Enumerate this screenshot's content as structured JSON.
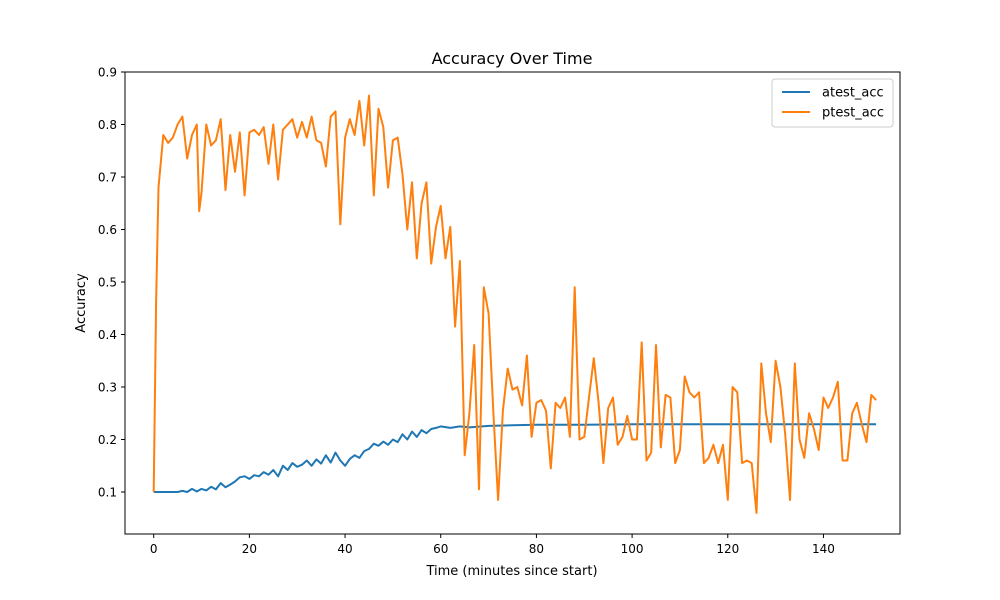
{
  "chart_data": {
    "type": "line",
    "title": "Accuracy Over Time",
    "xlabel": "Time (minutes since start)",
    "ylabel": "Accuracy",
    "xlim": [
      -6,
      156
    ],
    "ylim": [
      0.02,
      0.9
    ],
    "xticks": [
      0,
      20,
      40,
      60,
      80,
      100,
      120,
      140
    ],
    "yticks": [
      0.1,
      0.2,
      0.3,
      0.4,
      0.5,
      0.6,
      0.7,
      0.8,
      0.9
    ],
    "xtick_labels": [
      "0",
      "20",
      "40",
      "60",
      "80",
      "100",
      "120",
      "140"
    ],
    "ytick_labels": [
      "0.1",
      "0.2",
      "0.3",
      "0.4",
      "0.5",
      "0.6",
      "0.7",
      "0.8",
      "0.9"
    ],
    "grid": false,
    "legend_position": "top-right",
    "series": [
      {
        "name": "atest_acc",
        "color": "#1f77b4",
        "points": [
          [
            0,
            0.1
          ],
          [
            2,
            0.1
          ],
          [
            4,
            0.1
          ],
          [
            5,
            0.1
          ],
          [
            6,
            0.102
          ],
          [
            7,
            0.1
          ],
          [
            8,
            0.106
          ],
          [
            9,
            0.101
          ],
          [
            10,
            0.106
          ],
          [
            11,
            0.103
          ],
          [
            12,
            0.11
          ],
          [
            13,
            0.105
          ],
          [
            14,
            0.117
          ],
          [
            15,
            0.109
          ],
          [
            16,
            0.114
          ],
          [
            17,
            0.12
          ],
          [
            18,
            0.128
          ],
          [
            19,
            0.13
          ],
          [
            20,
            0.125
          ],
          [
            21,
            0.132
          ],
          [
            22,
            0.13
          ],
          [
            23,
            0.138
          ],
          [
            24,
            0.133
          ],
          [
            25,
            0.142
          ],
          [
            26,
            0.13
          ],
          [
            27,
            0.15
          ],
          [
            28,
            0.142
          ],
          [
            29,
            0.155
          ],
          [
            30,
            0.148
          ],
          [
            31,
            0.152
          ],
          [
            32,
            0.16
          ],
          [
            33,
            0.15
          ],
          [
            34,
            0.162
          ],
          [
            35,
            0.154
          ],
          [
            36,
            0.17
          ],
          [
            37,
            0.156
          ],
          [
            38,
            0.175
          ],
          [
            39,
            0.16
          ],
          [
            40,
            0.15
          ],
          [
            41,
            0.163
          ],
          [
            42,
            0.17
          ],
          [
            43,
            0.165
          ],
          [
            44,
            0.178
          ],
          [
            45,
            0.182
          ],
          [
            46,
            0.192
          ],
          [
            47,
            0.188
          ],
          [
            48,
            0.196
          ],
          [
            49,
            0.19
          ],
          [
            50,
            0.2
          ],
          [
            51,
            0.195
          ],
          [
            52,
            0.21
          ],
          [
            53,
            0.2
          ],
          [
            54,
            0.215
          ],
          [
            55,
            0.205
          ],
          [
            56,
            0.218
          ],
          [
            57,
            0.212
          ],
          [
            58,
            0.22
          ],
          [
            59,
            0.222
          ],
          [
            60,
            0.225
          ],
          [
            62,
            0.222
          ],
          [
            64,
            0.225
          ],
          [
            66,
            0.223
          ],
          [
            70,
            0.226
          ],
          [
            75,
            0.227
          ],
          [
            80,
            0.228
          ],
          [
            90,
            0.228
          ],
          [
            100,
            0.229
          ],
          [
            110,
            0.229
          ],
          [
            120,
            0.229
          ],
          [
            130,
            0.229
          ],
          [
            140,
            0.229
          ],
          [
            151,
            0.229
          ]
        ]
      },
      {
        "name": "ptest_acc",
        "color": "#ff7f0e",
        "points": [
          [
            0,
            0.1
          ],
          [
            0.5,
            0.46
          ],
          [
            1,
            0.68
          ],
          [
            2,
            0.78
          ],
          [
            3,
            0.765
          ],
          [
            4,
            0.775
          ],
          [
            5,
            0.8
          ],
          [
            6,
            0.815
          ],
          [
            7,
            0.735
          ],
          [
            8,
            0.78
          ],
          [
            9,
            0.8
          ],
          [
            9.5,
            0.635
          ],
          [
            10,
            0.67
          ],
          [
            11,
            0.8
          ],
          [
            12,
            0.76
          ],
          [
            13,
            0.77
          ],
          [
            14,
            0.81
          ],
          [
            15,
            0.675
          ],
          [
            16,
            0.78
          ],
          [
            17,
            0.71
          ],
          [
            18,
            0.785
          ],
          [
            19,
            0.665
          ],
          [
            20,
            0.785
          ],
          [
            21,
            0.79
          ],
          [
            22,
            0.78
          ],
          [
            23,
            0.795
          ],
          [
            24,
            0.725
          ],
          [
            25,
            0.8
          ],
          [
            26,
            0.695
          ],
          [
            27,
            0.79
          ],
          [
            28,
            0.8
          ],
          [
            29,
            0.81
          ],
          [
            30,
            0.775
          ],
          [
            31,
            0.805
          ],
          [
            32,
            0.775
          ],
          [
            33,
            0.815
          ],
          [
            34,
            0.77
          ],
          [
            35,
            0.765
          ],
          [
            36,
            0.72
          ],
          [
            37,
            0.815
          ],
          [
            38,
            0.825
          ],
          [
            39,
            0.61
          ],
          [
            40,
            0.775
          ],
          [
            41,
            0.81
          ],
          [
            42,
            0.78
          ],
          [
            43,
            0.845
          ],
          [
            44,
            0.76
          ],
          [
            45,
            0.855
          ],
          [
            46,
            0.665
          ],
          [
            47,
            0.83
          ],
          [
            48,
            0.795
          ],
          [
            49,
            0.68
          ],
          [
            50,
            0.77
          ],
          [
            51,
            0.775
          ],
          [
            52,
            0.705
          ],
          [
            53,
            0.6
          ],
          [
            54,
            0.69
          ],
          [
            55,
            0.545
          ],
          [
            56,
            0.65
          ],
          [
            57,
            0.69
          ],
          [
            58,
            0.535
          ],
          [
            59,
            0.605
          ],
          [
            60,
            0.645
          ],
          [
            61,
            0.545
          ],
          [
            62,
            0.605
          ],
          [
            63,
            0.415
          ],
          [
            64,
            0.54
          ],
          [
            65,
            0.17
          ],
          [
            66,
            0.25
          ],
          [
            67,
            0.38
          ],
          [
            68,
            0.105
          ],
          [
            69,
            0.49
          ],
          [
            70,
            0.44
          ],
          [
            71,
            0.25
          ],
          [
            72,
            0.085
          ],
          [
            73,
            0.255
          ],
          [
            74,
            0.335
          ],
          [
            75,
            0.295
          ],
          [
            76,
            0.3
          ],
          [
            77,
            0.265
          ],
          [
            78,
            0.36
          ],
          [
            79,
            0.205
          ],
          [
            80,
            0.27
          ],
          [
            81,
            0.275
          ],
          [
            82,
            0.255
          ],
          [
            83,
            0.145
          ],
          [
            84,
            0.27
          ],
          [
            85,
            0.26
          ],
          [
            86,
            0.28
          ],
          [
            87,
            0.205
          ],
          [
            88,
            0.49
          ],
          [
            89,
            0.2
          ],
          [
            90,
            0.205
          ],
          [
            91,
            0.28
          ],
          [
            92,
            0.355
          ],
          [
            93,
            0.27
          ],
          [
            94,
            0.155
          ],
          [
            95,
            0.26
          ],
          [
            96,
            0.28
          ],
          [
            97,
            0.19
          ],
          [
            98,
            0.205
          ],
          [
            99,
            0.245
          ],
          [
            100,
            0.2
          ],
          [
            101,
            0.2
          ],
          [
            102,
            0.385
          ],
          [
            103,
            0.16
          ],
          [
            104,
            0.175
          ],
          [
            105,
            0.38
          ],
          [
            106,
            0.185
          ],
          [
            107,
            0.285
          ],
          [
            108,
            0.28
          ],
          [
            109,
            0.155
          ],
          [
            110,
            0.18
          ],
          [
            111,
            0.32
          ],
          [
            112,
            0.29
          ],
          [
            113,
            0.28
          ],
          [
            114,
            0.29
          ],
          [
            115,
            0.155
          ],
          [
            116,
            0.165
          ],
          [
            117,
            0.19
          ],
          [
            118,
            0.155
          ],
          [
            119,
            0.19
          ],
          [
            120,
            0.085
          ],
          [
            121,
            0.3
          ],
          [
            122,
            0.29
          ],
          [
            123,
            0.155
          ],
          [
            124,
            0.16
          ],
          [
            125,
            0.155
          ],
          [
            126,
            0.06
          ],
          [
            127,
            0.345
          ],
          [
            128,
            0.25
          ],
          [
            129,
            0.195
          ],
          [
            130,
            0.35
          ],
          [
            131,
            0.3
          ],
          [
            132,
            0.21
          ],
          [
            133,
            0.085
          ],
          [
            134,
            0.345
          ],
          [
            135,
            0.2
          ],
          [
            136,
            0.165
          ],
          [
            137,
            0.25
          ],
          [
            138,
            0.22
          ],
          [
            139,
            0.18
          ],
          [
            140,
            0.28
          ],
          [
            141,
            0.26
          ],
          [
            142,
            0.28
          ],
          [
            143,
            0.31
          ],
          [
            144,
            0.16
          ],
          [
            145,
            0.16
          ],
          [
            146,
            0.25
          ],
          [
            147,
            0.27
          ],
          [
            148,
            0.23
          ],
          [
            149,
            0.195
          ],
          [
            150,
            0.285
          ],
          [
            151,
            0.275
          ]
        ]
      }
    ]
  }
}
